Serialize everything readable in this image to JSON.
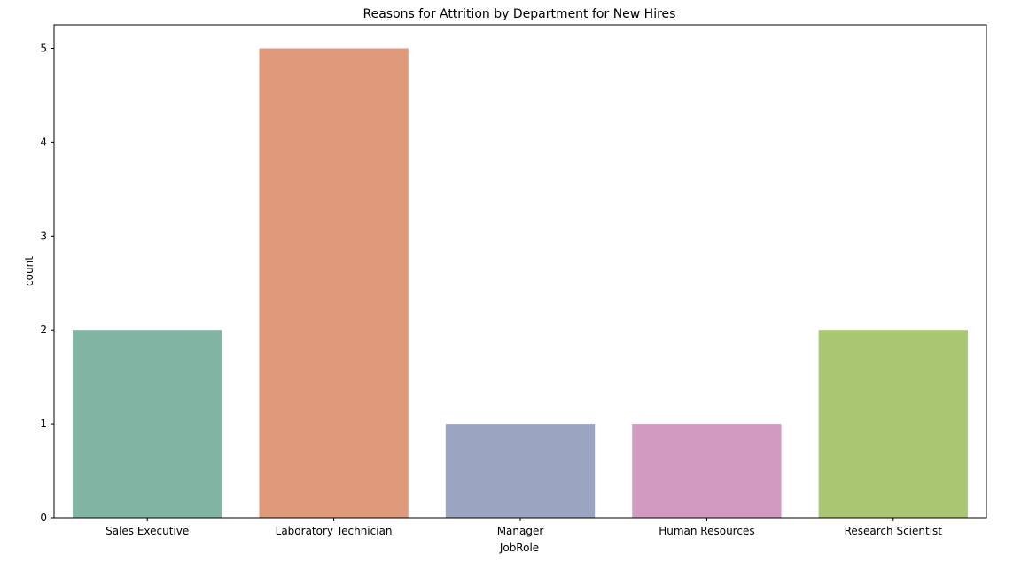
{
  "chart_data": {
    "type": "bar",
    "title": "Reasons for Attrition by Department for New Hires",
    "xlabel": "JobRole",
    "ylabel": "count",
    "categories": [
      "Sales Executive",
      "Laboratory Technician",
      "Manager",
      "Human Resources",
      "Research Scientist"
    ],
    "values": [
      2,
      5,
      1,
      1,
      2
    ],
    "colors": [
      "#82b4a3",
      "#de9a7a",
      "#9aa5c2",
      "#d39ac1",
      "#a9c773"
    ],
    "ylim": [
      0,
      5.25
    ],
    "yticks": [
      0,
      1,
      2,
      3,
      4,
      5
    ],
    "grid": false,
    "legend": "none"
  }
}
